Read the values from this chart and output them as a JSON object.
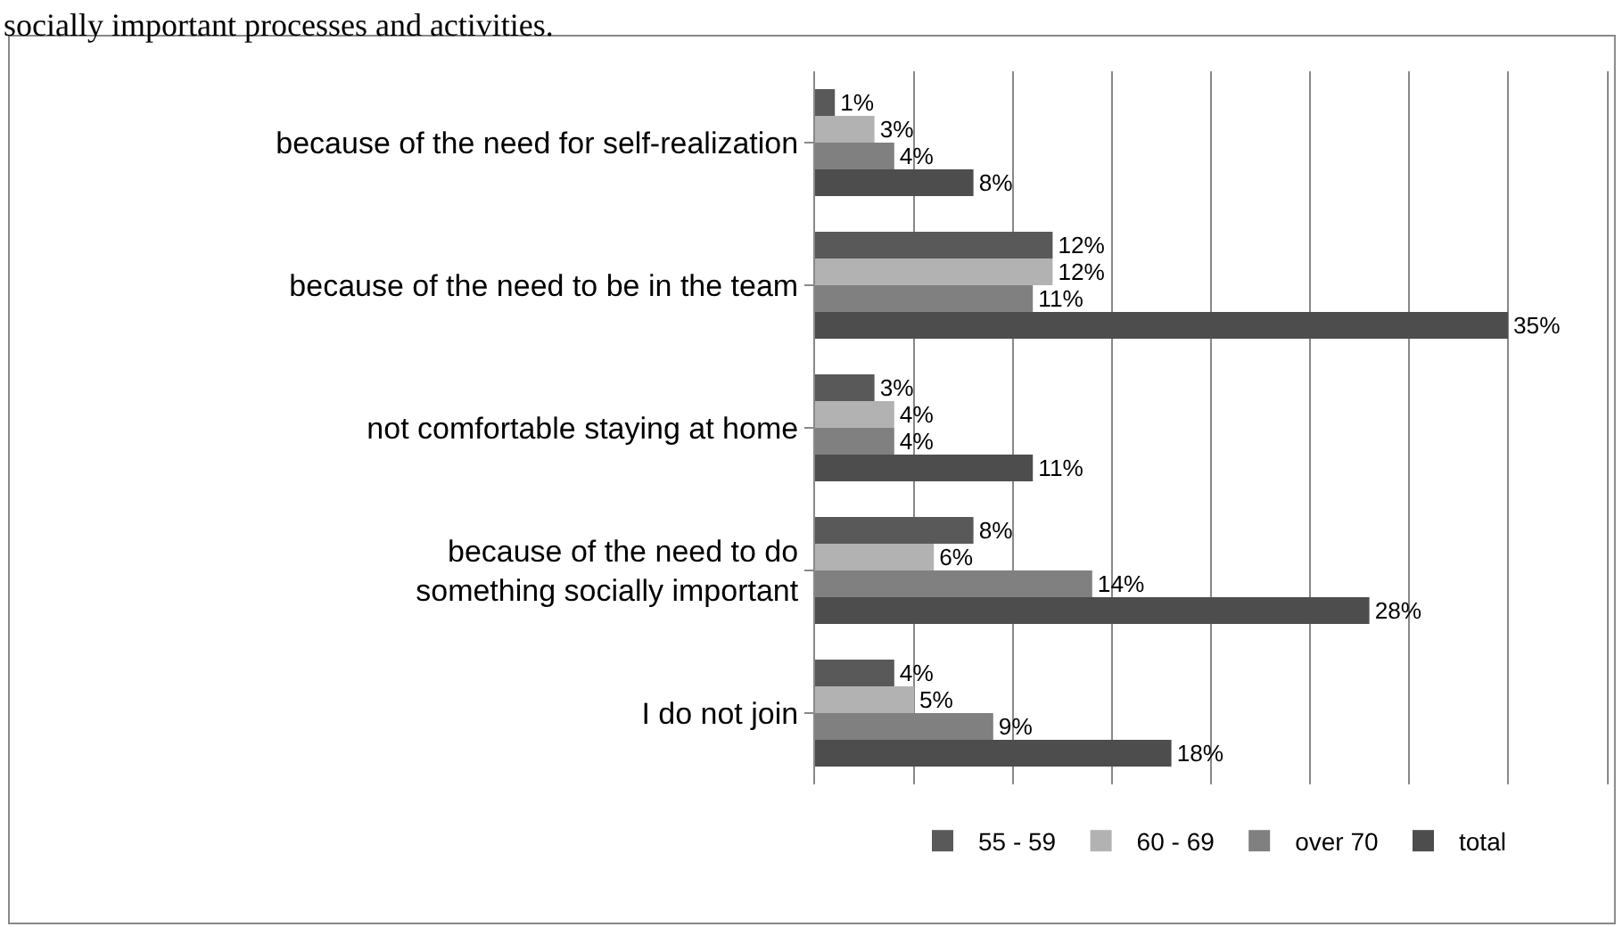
{
  "chart_data": {
    "type": "bar",
    "orientation": "horizontal",
    "annotations": [
      "socially important processes and activities."
    ],
    "categories": [
      "because of the need for self-realization",
      "because of the need to be in the team",
      "not comfortable staying at home",
      "because of the need to do something socially important",
      "I do not join"
    ],
    "series": [
      {
        "name": "55 - 59",
        "color": "#595959",
        "values": [
          1,
          12,
          3,
          8,
          4
        ],
        "value_labels": [
          "1%",
          "12%",
          "3%",
          "8%",
          "4%"
        ]
      },
      {
        "name": "60 - 69",
        "color": "#b2b2b2",
        "values": [
          3,
          12,
          4,
          6,
          5
        ],
        "value_labels": [
          "3%",
          "12%",
          "4%",
          "6%",
          "5%"
        ]
      },
      {
        "name": "over 70",
        "color": "#808080",
        "values": [
          4,
          11,
          4,
          14,
          9
        ],
        "value_labels": [
          "4%",
          "11%",
          "4%",
          "14%",
          "9%"
        ]
      },
      {
        "name": "total",
        "color": "#4d4d4d",
        "values": [
          8,
          35,
          11,
          28,
          18
        ],
        "value_labels": [
          "8%",
          "35%",
          "11%",
          "28%",
          "18%"
        ]
      }
    ],
    "xlim": [
      0,
      40
    ],
    "xticks": [
      {
        "value": 0,
        "label": null
      },
      {
        "value": 5,
        "label": null
      },
      {
        "value": 10,
        "label": null
      },
      {
        "value": 15,
        "label": null
      },
      {
        "value": 20,
        "label": null
      },
      {
        "value": 25,
        "label": null
      },
      {
        "value": 30,
        "label": null
      },
      {
        "value": 35,
        "label": null
      },
      {
        "value": 40,
        "label": null
      }
    ],
    "tick_labels": "y",
    "grid": "x",
    "legend": "bottom"
  }
}
